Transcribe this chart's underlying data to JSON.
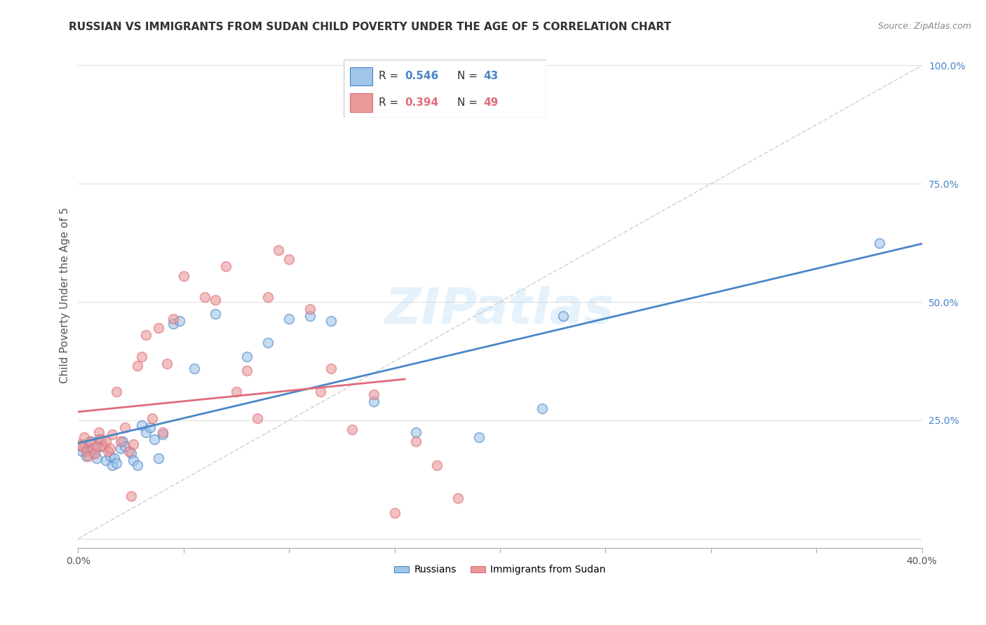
{
  "title": "RUSSIAN VS IMMIGRANTS FROM SUDAN CHILD POVERTY UNDER THE AGE OF 5 CORRELATION CHART",
  "source": "Source: ZipAtlas.com",
  "ylabel": "Child Poverty Under the Age of 5",
  "xlim": [
    0.0,
    0.4
  ],
  "ylim": [
    -0.02,
    1.05
  ],
  "xticks": [
    0.0,
    0.05,
    0.1,
    0.15,
    0.2,
    0.25,
    0.3,
    0.35,
    0.4
  ],
  "xticklabels": [
    "0.0%",
    "",
    "",
    "",
    "",
    "",
    "",
    "",
    "40.0%"
  ],
  "yticks": [
    0.0,
    0.25,
    0.5,
    0.75,
    1.0
  ],
  "yticklabels": [
    "",
    "25.0%",
    "50.0%",
    "75.0%",
    "100.0%"
  ],
  "russian_R": 0.546,
  "russian_N": 43,
  "sudan_R": 0.394,
  "sudan_N": 49,
  "russian_color": "#9fc5e8",
  "sudan_color": "#ea9999",
  "russian_line_color": "#4a86c8",
  "sudan_line_color": "#e06c7a",
  "diagonal_color": "#cccccc",
  "background_color": "#ffffff",
  "grid_color": "#e0e0e0",
  "russian_x": [
    0.001,
    0.002,
    0.003,
    0.004,
    0.005,
    0.006,
    0.007,
    0.008,
    0.009,
    0.01,
    0.011,
    0.013,
    0.015,
    0.016,
    0.017,
    0.018,
    0.02,
    0.021,
    0.022,
    0.025,
    0.026,
    0.028,
    0.03,
    0.032,
    0.034,
    0.036,
    0.038,
    0.04,
    0.045,
    0.048,
    0.055,
    0.065,
    0.08,
    0.09,
    0.1,
    0.11,
    0.12,
    0.14,
    0.16,
    0.19,
    0.22,
    0.23,
    0.38
  ],
  "russian_y": [
    0.195,
    0.185,
    0.2,
    0.175,
    0.19,
    0.205,
    0.185,
    0.18,
    0.17,
    0.21,
    0.195,
    0.165,
    0.175,
    0.155,
    0.17,
    0.16,
    0.19,
    0.205,
    0.195,
    0.18,
    0.165,
    0.155,
    0.24,
    0.225,
    0.235,
    0.21,
    0.17,
    0.22,
    0.455,
    0.46,
    0.36,
    0.475,
    0.385,
    0.415,
    0.465,
    0.47,
    0.46,
    0.29,
    0.225,
    0.215,
    0.275,
    0.47,
    0.625
  ],
  "sudan_x": [
    0.001,
    0.002,
    0.003,
    0.004,
    0.005,
    0.006,
    0.007,
    0.008,
    0.009,
    0.01,
    0.011,
    0.012,
    0.013,
    0.014,
    0.015,
    0.016,
    0.018,
    0.02,
    0.022,
    0.024,
    0.026,
    0.028,
    0.03,
    0.032,
    0.035,
    0.038,
    0.04,
    0.042,
    0.045,
    0.05,
    0.06,
    0.065,
    0.07,
    0.075,
    0.08,
    0.085,
    0.09,
    0.095,
    0.1,
    0.11,
    0.115,
    0.12,
    0.13,
    0.14,
    0.15,
    0.16,
    0.17,
    0.18,
    0.025
  ],
  "sudan_y": [
    0.2,
    0.195,
    0.215,
    0.185,
    0.175,
    0.205,
    0.19,
    0.18,
    0.195,
    0.225,
    0.21,
    0.195,
    0.205,
    0.185,
    0.19,
    0.22,
    0.31,
    0.205,
    0.235,
    0.185,
    0.2,
    0.365,
    0.385,
    0.43,
    0.255,
    0.445,
    0.225,
    0.37,
    0.465,
    0.555,
    0.51,
    0.505,
    0.575,
    0.31,
    0.355,
    0.255,
    0.51,
    0.61,
    0.59,
    0.485,
    0.31,
    0.36,
    0.23,
    0.305,
    0.055,
    0.205,
    0.155,
    0.085,
    0.09
  ],
  "legend_R1_label": "R = 0.546",
  "legend_N1_label": "N = 43",
  "legend_R2_label": "R = 0.394",
  "legend_N2_label": "N = 49",
  "bottom_legend_labels": [
    "Russians",
    "Immigrants from Sudan"
  ]
}
